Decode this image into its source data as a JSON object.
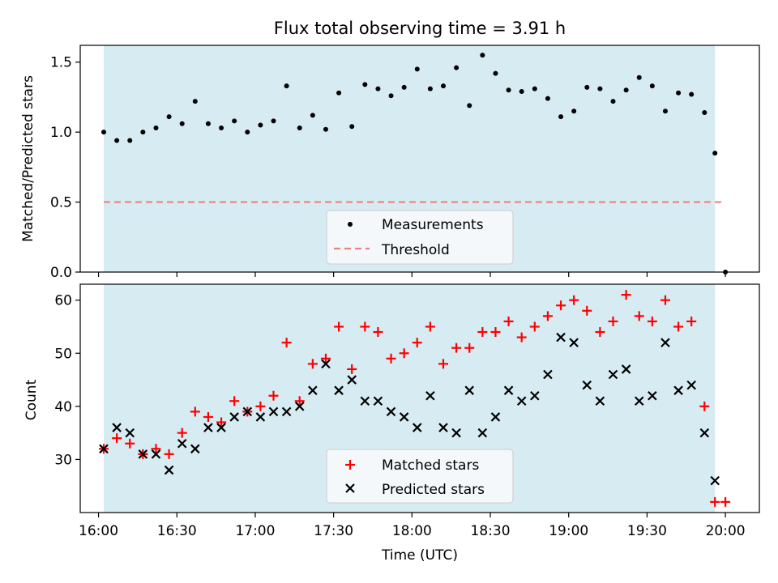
{
  "chart_data": [
    {
      "type": "scatter",
      "title": "Flux total observing time = 3.91 h",
      "xlabel": "",
      "ylabel": "Matched/Predicted stars",
      "ylim": [
        0,
        1.62
      ],
      "xlim": [
        "15:53",
        "20:13"
      ],
      "yticks": [
        0.0,
        0.5,
        1.0,
        1.5
      ],
      "ytick_labels": [
        "0.0",
        "0.5",
        "1.0",
        "1.5"
      ],
      "observing_window": [
        "16:02",
        "19:56"
      ],
      "legend": {
        "placement": "lower-center",
        "entries": [
          "Measurements",
          "Threshold"
        ]
      },
      "threshold": {
        "name": "Threshold",
        "value": 0.5,
        "x_range": [
          "16:02",
          "20:00"
        ],
        "color": "#f08080",
        "style": "dashed"
      },
      "series": [
        {
          "name": "Measurements",
          "marker": "dot",
          "color": "#000000",
          "x": [
            "16:02",
            "16:07",
            "16:12",
            "16:17",
            "16:22",
            "16:27",
            "16:32",
            "16:37",
            "16:42",
            "16:47",
            "16:52",
            "16:57",
            "17:02",
            "17:07",
            "17:12",
            "17:17",
            "17:22",
            "17:27",
            "17:32",
            "17:37",
            "17:42",
            "17:47",
            "17:52",
            "17:57",
            "18:02",
            "18:07",
            "18:12",
            "18:17",
            "18:22",
            "18:27",
            "18:32",
            "18:37",
            "18:42",
            "18:47",
            "18:52",
            "18:57",
            "19:02",
            "19:07",
            "19:12",
            "19:17",
            "19:22",
            "19:27",
            "19:32",
            "19:37",
            "19:42",
            "19:47",
            "19:52",
            "19:56",
            "20:00"
          ],
          "y": [
            1.0,
            0.94,
            0.94,
            1.0,
            1.03,
            1.11,
            1.06,
            1.22,
            1.06,
            1.03,
            1.08,
            1.0,
            1.05,
            1.08,
            1.33,
            1.03,
            1.12,
            1.02,
            1.28,
            1.04,
            1.34,
            1.31,
            1.26,
            1.32,
            1.45,
            1.31,
            1.33,
            1.46,
            1.19,
            1.55,
            1.42,
            1.3,
            1.29,
            1.31,
            1.24,
            1.11,
            1.15,
            1.32,
            1.31,
            1.22,
            1.3,
            1.39,
            1.33,
            1.15,
            1.28,
            1.27,
            1.14,
            0.85,
            0.0
          ]
        }
      ]
    },
    {
      "type": "scatter",
      "title": "",
      "xlabel": "Time (UTC)",
      "ylabel": "Count",
      "ylim": [
        20,
        63
      ],
      "xlim": [
        "15:53",
        "20:13"
      ],
      "yticks": [
        30,
        40,
        50,
        60
      ],
      "ytick_labels": [
        "30",
        "40",
        "50",
        "60"
      ],
      "xticks": [
        "16:00",
        "16:30",
        "17:00",
        "17:30",
        "18:00",
        "18:30",
        "19:00",
        "19:30",
        "20:00"
      ],
      "observing_window": [
        "16:02",
        "19:56"
      ],
      "legend": {
        "placement": "lower-center",
        "entries": [
          "Matched stars",
          "Predicted stars"
        ]
      },
      "series": [
        {
          "name": "Matched stars",
          "marker": "plus",
          "color": "#ff0000",
          "x": [
            "16:02",
            "16:07",
            "16:12",
            "16:17",
            "16:22",
            "16:27",
            "16:32",
            "16:37",
            "16:42",
            "16:47",
            "16:52",
            "16:57",
            "17:02",
            "17:07",
            "17:12",
            "17:17",
            "17:22",
            "17:27",
            "17:32",
            "17:37",
            "17:42",
            "17:47",
            "17:52",
            "17:57",
            "18:02",
            "18:07",
            "18:12",
            "18:17",
            "18:22",
            "18:27",
            "18:32",
            "18:37",
            "18:42",
            "18:47",
            "18:52",
            "18:57",
            "19:02",
            "19:07",
            "19:12",
            "19:17",
            "19:22",
            "19:27",
            "19:32",
            "19:37",
            "19:42",
            "19:47",
            "19:52",
            "19:56",
            "20:00"
          ],
          "y": [
            32,
            34,
            33,
            31,
            32,
            31,
            35,
            39,
            38,
            37,
            41,
            39,
            40,
            42,
            52,
            41,
            48,
            49,
            55,
            47,
            55,
            54,
            49,
            50,
            52,
            55,
            48,
            51,
            51,
            54,
            54,
            56,
            53,
            55,
            57,
            59,
            60,
            58,
            54,
            56,
            61,
            57,
            56,
            60,
            55,
            56,
            40,
            22,
            22
          ]
        },
        {
          "name": "Predicted stars",
          "marker": "x",
          "color": "#000000",
          "x": [
            "16:02",
            "16:07",
            "16:12",
            "16:17",
            "16:22",
            "16:27",
            "16:32",
            "16:37",
            "16:42",
            "16:47",
            "16:52",
            "16:57",
            "17:02",
            "17:07",
            "17:12",
            "17:17",
            "17:22",
            "17:27",
            "17:32",
            "17:37",
            "17:42",
            "17:47",
            "17:52",
            "17:57",
            "18:02",
            "18:07",
            "18:12",
            "18:17",
            "18:22",
            "18:27",
            "18:32",
            "18:37",
            "18:42",
            "18:47",
            "18:52",
            "18:57",
            "19:02",
            "19:07",
            "19:12",
            "19:17",
            "19:22",
            "19:27",
            "19:32",
            "19:37",
            "19:42",
            "19:47",
            "19:52",
            "19:56"
          ],
          "y": [
            32,
            36,
            35,
            31,
            31,
            28,
            33,
            32,
            36,
            36,
            38,
            39,
            38,
            39,
            39,
            40,
            43,
            48,
            43,
            45,
            41,
            41,
            39,
            38,
            36,
            42,
            36,
            35,
            43,
            35,
            38,
            43,
            41,
            42,
            46,
            53,
            52,
            44,
            41,
            46,
            47,
            41,
            42,
            52,
            43,
            44,
            35,
            26
          ]
        }
      ]
    }
  ]
}
